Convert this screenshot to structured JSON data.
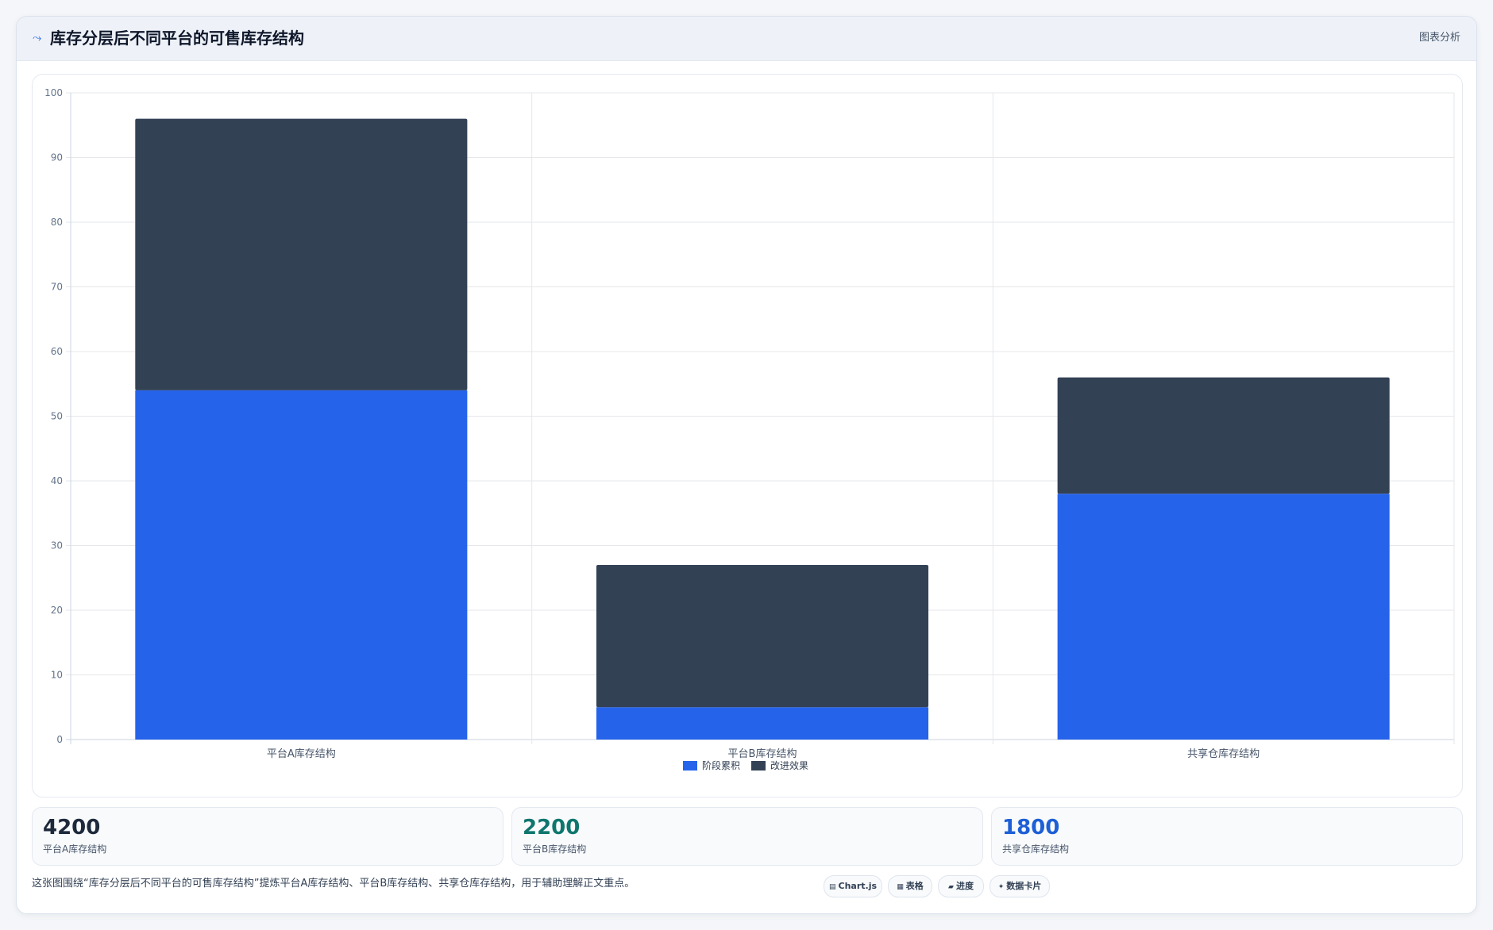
{
  "header": {
    "title": "库存分层后不同平台的可售库存结构",
    "link_label": "图表分析",
    "icon": "trend-icon"
  },
  "colors": {
    "series_1": "#2563eb",
    "series_2": "#334155",
    "stat_1": "#1e293b",
    "stat_2": "#0f766e",
    "stat_3": "#1d5fd6"
  },
  "chart_data": {
    "type": "bar",
    "stacked": true,
    "categories": [
      "平台A库存结构",
      "平台B库存结构",
      "共享仓库存结构"
    ],
    "series": [
      {
        "name": "阶段累积",
        "values": [
          54,
          5,
          38
        ]
      },
      {
        "name": "改进效果",
        "values": [
          42,
          22,
          18
        ]
      }
    ],
    "ylim": [
      0,
      100
    ],
    "yticks": [
      0,
      10,
      20,
      30,
      40,
      50,
      60,
      70,
      80,
      90,
      100
    ],
    "grid": true,
    "legend_position": "bottom-center"
  },
  "stats": [
    {
      "value": "4200",
      "label": "平台A库存结构"
    },
    {
      "value": "2200",
      "label": "平台B库存结构"
    },
    {
      "value": "1800",
      "label": "共享仓库存结构"
    }
  ],
  "footer": {
    "description": "这张图围绕“库存分层后不同平台的可售库存结构”提炼平台A库存结构、平台B库存结构、共享仓库存结构，用于辅助理解正文重点。",
    "tags": [
      {
        "icon": "chart-icon",
        "label": "Chart.js"
      },
      {
        "icon": "table-icon",
        "label": "表格"
      },
      {
        "icon": "progress-icon",
        "label": "进度"
      },
      {
        "icon": "card-icon",
        "label": "数据卡片"
      }
    ]
  }
}
